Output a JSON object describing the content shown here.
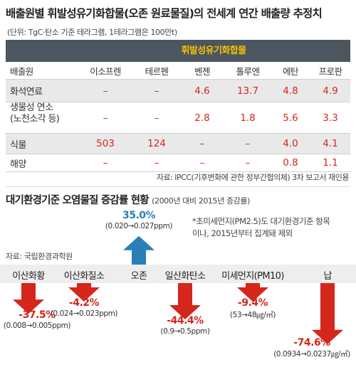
{
  "title": "배출원별 휘발성유기화합물(오존 원료물질)의 전세계 연간 배출량 추정치",
  "unit_note": "(단위: TgC·탄소 기준 테라그램, 1테라그램은 100만t)",
  "table": {
    "group_header": "휘발성유기화합물",
    "columns": [
      "배출원",
      "이소프렌",
      "테르펜",
      "벤젠",
      "톨루엔",
      "에탄",
      "프로판"
    ],
    "rows": [
      {
        "label": "화석연료",
        "label2": "",
        "values": [
          "–",
          "–",
          "4.6",
          "13.7",
          "4.8",
          "4.9"
        ]
      },
      {
        "label": "생물성 연소",
        "label2": "(노천소각 등)",
        "values": [
          "–",
          "–",
          "2.8",
          "1.8",
          "5.6",
          "3.3"
        ]
      },
      {
        "label": "식물",
        "label2": "",
        "values": [
          "503",
          "124",
          "–",
          "–",
          "4.0",
          "4.1"
        ]
      },
      {
        "label": "해양",
        "label2": "",
        "values": [
          "–",
          "–",
          "–",
          "–",
          "0.8",
          "1.1"
        ]
      }
    ]
  },
  "source1": "자료: IPCC(기후변화에 관한 정부간협의체) 3차 보고서 재인용",
  "section2": {
    "title": "대기환경기준 오염물질 증감률 현황",
    "subtitle": "(2000년 대비 2015년 증감률)",
    "note": "*초미세먼지(PM2.5)도 대기환경기준 항목이나, 2015년부터 집계돼 제외",
    "source": "자료: 국립환경과학원"
  },
  "chart_data": {
    "type": "bar",
    "title": "대기환경기준 오염물질 증감률 현황",
    "subtitle": "(2000년 대비 2015년 증감률)",
    "ylabel": "",
    "unit": "%",
    "categories": [
      "이산화황",
      "이산화질소",
      "오존",
      "일산화탄소",
      "미세먼지(PM10)",
      "납"
    ],
    "values": [
      -37.5,
      -4.2,
      35.0,
      -44.4,
      -9.4,
      -74.6
    ],
    "value_labels": [
      "-37.5%",
      "-4.2%",
      "35.0%",
      "-44.4%",
      "-9.4%",
      "-74.6%"
    ],
    "ranges": [
      "(0.008→0.005ppm)",
      "(0.024→0.023ppm)",
      "(0.020→0.027ppm)",
      "(0.9→0.5ppm)",
      "(53→48㎍/㎥)",
      "(0.0934→0.0237㎍/㎥)"
    ],
    "colors": {
      "negative": "#d4261b",
      "positive": "#2b7fb8"
    }
  }
}
